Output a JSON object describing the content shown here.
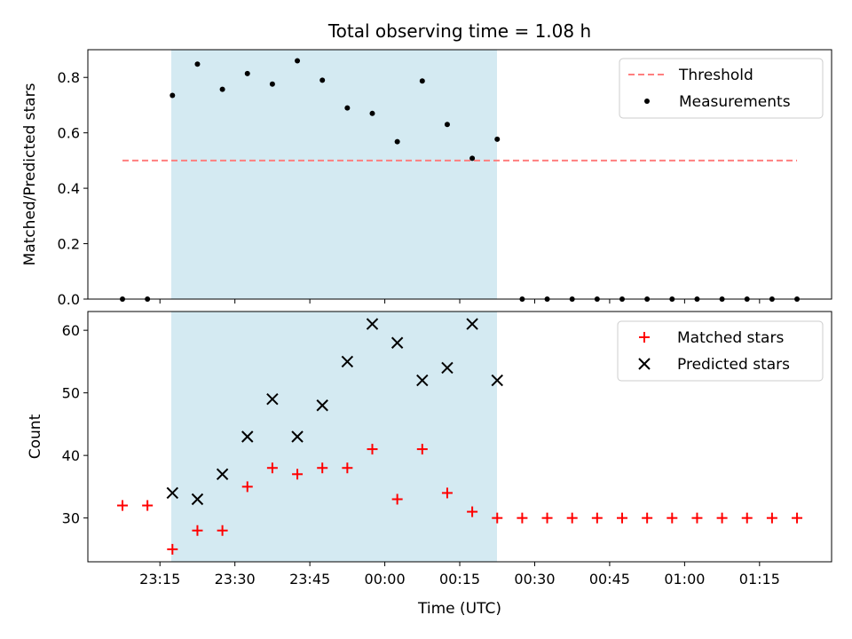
{
  "chart_data": {
    "title": "Total observing time = 1.08 h",
    "xlabel": "Time (UTC)",
    "x_tick_labels": [
      "23:15",
      "23:30",
      "23:45",
      "00:00",
      "00:15",
      "00:30",
      "00:45",
      "01:00",
      "01:15"
    ],
    "colors": {
      "shade": "#add8e6",
      "threshold": "#ff7f7f",
      "measurements": "#000000",
      "matched": "#ff0000",
      "predicted": "#000000"
    },
    "top": {
      "type": "scatter",
      "ylabel": "Matched/Predicted stars",
      "ylim": [
        0,
        0.9
      ],
      "yticks": [
        "0.0",
        "0.2",
        "0.4",
        "0.6",
        "0.8"
      ],
      "threshold": 0.5,
      "legend": [
        "Threshold",
        "Measurements"
      ],
      "legend_placement": "top-right",
      "measurements": [
        0.0,
        0.0,
        0.735,
        0.848,
        0.757,
        0.814,
        0.776,
        0.86,
        0.79,
        0.69,
        0.67,
        0.568,
        0.787,
        0.63,
        0.508,
        0.577,
        0.0,
        0.0,
        0.0,
        0.0,
        0.0,
        0.0,
        0.0,
        0.0,
        0.0,
        0.0,
        0.0,
        0.0
      ]
    },
    "bottom": {
      "type": "scatter",
      "ylabel": "Count",
      "ylim": [
        23,
        63
      ],
      "yticks": [
        "30",
        "40",
        "50",
        "60"
      ],
      "legend": [
        "Matched stars",
        "Predicted stars"
      ],
      "legend_placement": "top-right",
      "matched": [
        32,
        32,
        25,
        28,
        28,
        35,
        38,
        37,
        38,
        38,
        41,
        33,
        41,
        34,
        31,
        30,
        30,
        30,
        30,
        30,
        30,
        30,
        30,
        30,
        30,
        30,
        30,
        30
      ],
      "predicted": [
        null,
        null,
        34,
        33,
        37,
        43,
        49,
        43,
        48,
        55,
        61,
        58,
        52,
        54,
        61,
        52,
        null,
        null,
        null,
        null,
        null,
        null,
        null,
        null,
        null,
        null,
        null,
        null
      ]
    }
  }
}
